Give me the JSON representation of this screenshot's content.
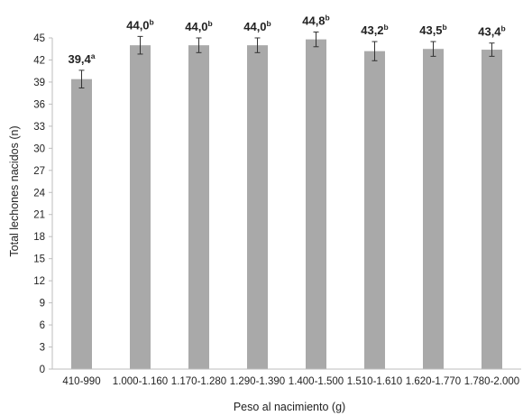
{
  "chart_data": {
    "type": "bar",
    "categories": [
      "410-990",
      "1.000-1.160",
      "1.170-1.280",
      "1.290-1.390",
      "1.400-1.500",
      "1.510-1.610",
      "1.620-1.770",
      "1.780-2.000"
    ],
    "values": [
      39.4,
      44.0,
      44.0,
      44.0,
      44.8,
      43.2,
      43.5,
      43.4
    ],
    "value_labels": [
      "39,4",
      "44,0",
      "44,0",
      "44,0",
      "44,8",
      "43,2",
      "43,5",
      "43,4"
    ],
    "significance": [
      "a",
      "b",
      "b",
      "b",
      "b",
      "b",
      "b",
      "b"
    ],
    "error": [
      1.2,
      1.2,
      1.0,
      1.0,
      1.0,
      1.3,
      1.0,
      0.9
    ],
    "xlabel": "Peso al nacimiento (g)",
    "ylabel": "Total lechones nacidos (n)",
    "ylim": [
      0,
      45
    ],
    "yticks": [
      0,
      3,
      6,
      9,
      12,
      15,
      18,
      21,
      24,
      27,
      30,
      33,
      36,
      39,
      42,
      45
    ],
    "grid": false,
    "colors": {
      "bar": "#a9a9a9",
      "axis": "#bdbdbd",
      "error": "#333333"
    }
  }
}
